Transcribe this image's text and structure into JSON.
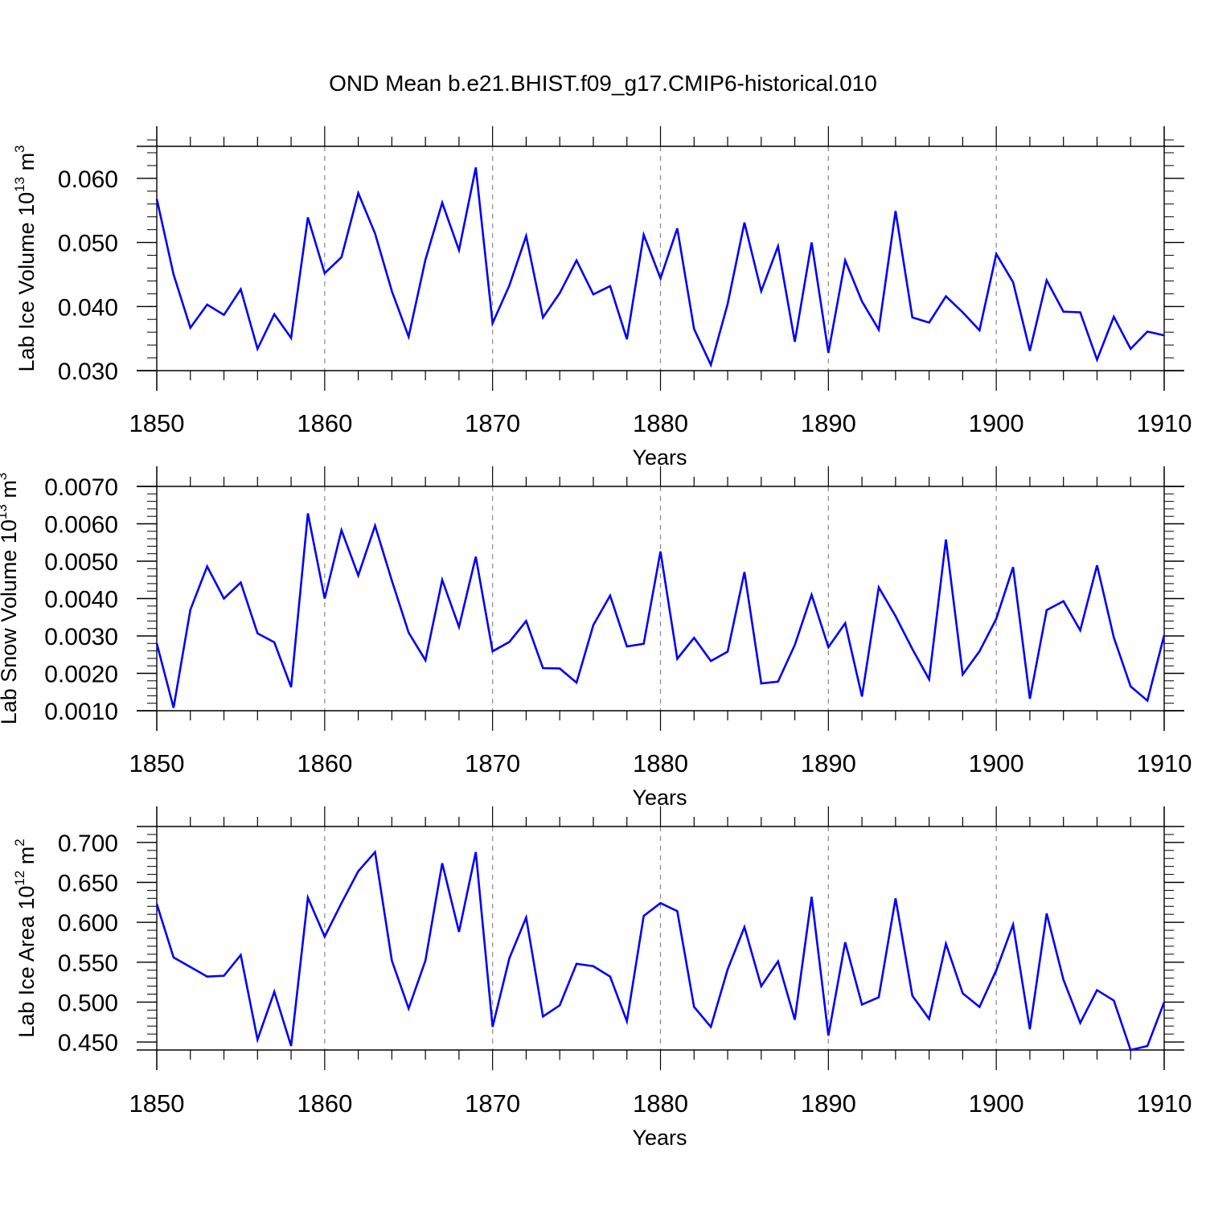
{
  "title": "OND Mean b.e21.BHIST.f09_g17.CMIP6-historical.010",
  "colors": {
    "line": "#0000ff",
    "axis": "#000000",
    "grid": "#888888"
  },
  "chart_data": [
    {
      "type": "line",
      "ylabel_main": "Lab Ice Volume 10",
      "ylabel_exp": "13",
      "ylabel_unit": " m",
      "ylabel_unit_exp": "3",
      "xlabel": "Years",
      "xlim": [
        1850,
        1910
      ],
      "ylim": [
        0.03,
        0.065
      ],
      "yticks": [
        0.03,
        0.04,
        0.05,
        0.06
      ],
      "yticklabels": [
        "0.030",
        "0.040",
        "0.050",
        "0.060"
      ],
      "yminor_step": 0.002,
      "xticks": [
        1850,
        1860,
        1870,
        1880,
        1890,
        1900,
        1910
      ],
      "xticklabels": [
        "1850",
        "1860",
        "1870",
        "1880",
        "1890",
        "1900",
        "1910"
      ],
      "grid": "vertical dashed",
      "series": [
        {
          "name": "Lab Ice Volume",
          "x": [
            1850,
            1851,
            1852,
            1853,
            1854,
            1855,
            1856,
            1857,
            1858,
            1859,
            1860,
            1861,
            1862,
            1863,
            1864,
            1865,
            1866,
            1867,
            1868,
            1869,
            1870,
            1871,
            1872,
            1873,
            1874,
            1875,
            1876,
            1877,
            1878,
            1879,
            1880,
            1881,
            1882,
            1883,
            1884,
            1885,
            1886,
            1887,
            1888,
            1889,
            1890,
            1891,
            1892,
            1893,
            1894,
            1895,
            1896,
            1897,
            1898,
            1899,
            1900,
            1901,
            1902,
            1903,
            1904,
            1905,
            1906,
            1907,
            1908,
            1909,
            1910
          ],
          "values": [
            0.0568,
            0.045,
            0.0367,
            0.0403,
            0.0387,
            0.0427,
            0.0334,
            0.0388,
            0.0351,
            0.0539,
            0.0452,
            0.0477,
            0.0577,
            0.0514,
            0.0424,
            0.0353,
            0.0473,
            0.0562,
            0.0488,
            0.0617,
            0.0374,
            0.0433,
            0.051,
            0.0383,
            0.0421,
            0.0472,
            0.0419,
            0.0432,
            0.0349,
            0.0512,
            0.0444,
            0.0522,
            0.0365,
            0.0309,
            0.0404,
            0.0531,
            0.0424,
            0.0494,
            0.0345,
            0.05,
            0.0328,
            0.0472,
            0.0408,
            0.0364,
            0.0549,
            0.0383,
            0.0375,
            0.0416,
            0.0391,
            0.0363,
            0.0482,
            0.0438,
            0.0331,
            0.0441,
            0.0392,
            0.0391,
            0.0317,
            0.0384,
            0.0334,
            0.0361,
            0.0355
          ]
        }
      ]
    },
    {
      "type": "line",
      "ylabel_main": "Lab Snow Volume 10",
      "ylabel_exp": "13",
      "ylabel_unit": " m",
      "ylabel_unit_exp": "3",
      "xlabel": "Years",
      "xlim": [
        1850,
        1910
      ],
      "ylim": [
        0.001,
        0.007
      ],
      "yticks": [
        0.001,
        0.002,
        0.003,
        0.004,
        0.005,
        0.006,
        0.007
      ],
      "yticklabels": [
        "0.0010",
        "0.0020",
        "0.0030",
        "0.0040",
        "0.0050",
        "0.0060",
        "0.0070"
      ],
      "yminor_step": 0.0002,
      "xticks": [
        1850,
        1860,
        1870,
        1880,
        1890,
        1900,
        1910
      ],
      "xticklabels": [
        "1850",
        "1860",
        "1870",
        "1880",
        "1890",
        "1900",
        "1910"
      ],
      "grid": "vertical dashed",
      "series": [
        {
          "name": "Lab Snow Volume",
          "x": [
            1850,
            1851,
            1852,
            1853,
            1854,
            1855,
            1856,
            1857,
            1858,
            1859,
            1860,
            1861,
            1862,
            1863,
            1864,
            1865,
            1866,
            1867,
            1868,
            1869,
            1870,
            1871,
            1872,
            1873,
            1874,
            1875,
            1876,
            1877,
            1878,
            1879,
            1880,
            1881,
            1882,
            1883,
            1884,
            1885,
            1886,
            1887,
            1888,
            1889,
            1890,
            1891,
            1892,
            1893,
            1894,
            1895,
            1896,
            1897,
            1898,
            1899,
            1900,
            1901,
            1902,
            1903,
            1904,
            1905,
            1906,
            1907,
            1908,
            1909,
            1910
          ],
          "values": [
            0.0028,
            0.00108,
            0.0037,
            0.00486,
            0.004,
            0.00443,
            0.00307,
            0.00283,
            0.00163,
            0.00628,
            0.004,
            0.00583,
            0.00462,
            0.00595,
            0.00448,
            0.00309,
            0.00235,
            0.0045,
            0.00324,
            0.00512,
            0.00259,
            0.00284,
            0.0034,
            0.00214,
            0.00213,
            0.00175,
            0.00329,
            0.00408,
            0.00272,
            0.00279,
            0.00526,
            0.00239,
            0.00295,
            0.00233,
            0.00258,
            0.00471,
            0.00173,
            0.00178,
            0.00276,
            0.0041,
            0.0027,
            0.00334,
            0.00138,
            0.0043,
            0.00353,
            0.00265,
            0.00184,
            0.00558,
            0.00197,
            0.00259,
            0.00346,
            0.00484,
            0.00132,
            0.00369,
            0.00393,
            0.00315,
            0.00489,
            0.00296,
            0.00165,
            0.00127,
            0.00302
          ]
        }
      ]
    },
    {
      "type": "line",
      "ylabel_main": "Lab Ice Area 10",
      "ylabel_exp": "12",
      "ylabel_unit": " m",
      "ylabel_unit_exp": "2",
      "xlabel": "Years",
      "xlim": [
        1850,
        1910
      ],
      "ylim": [
        0.44,
        0.72
      ],
      "yticks": [
        0.45,
        0.5,
        0.55,
        0.6,
        0.65,
        0.7
      ],
      "yticklabels": [
        "0.450",
        "0.500",
        "0.550",
        "0.600",
        "0.650",
        "0.700"
      ],
      "yminor_step": 0.01,
      "xticks": [
        1850,
        1860,
        1870,
        1880,
        1890,
        1900,
        1910
      ],
      "xticklabels": [
        "1850",
        "1860",
        "1870",
        "1880",
        "1890",
        "1900",
        "1910"
      ],
      "grid": "vertical dashed",
      "series": [
        {
          "name": "Lab Ice Area",
          "x": [
            1850,
            1851,
            1852,
            1853,
            1854,
            1855,
            1856,
            1857,
            1858,
            1859,
            1860,
            1861,
            1862,
            1863,
            1864,
            1865,
            1866,
            1867,
            1868,
            1869,
            1870,
            1871,
            1872,
            1873,
            1874,
            1875,
            1876,
            1877,
            1878,
            1879,
            1880,
            1881,
            1882,
            1883,
            1884,
            1885,
            1886,
            1887,
            1888,
            1889,
            1890,
            1891,
            1892,
            1893,
            1894,
            1895,
            1896,
            1897,
            1898,
            1899,
            1900,
            1901,
            1902,
            1903,
            1904,
            1905,
            1906,
            1907,
            1908,
            1909,
            1910
          ],
          "values": [
            0.623,
            0.556,
            0.544,
            0.532,
            0.533,
            0.559,
            0.453,
            0.513,
            0.445,
            0.631,
            0.582,
            0.624,
            0.664,
            0.688,
            0.552,
            0.492,
            0.552,
            0.674,
            0.588,
            0.688,
            0.469,
            0.555,
            0.606,
            0.482,
            0.496,
            0.548,
            0.545,
            0.532,
            0.476,
            0.608,
            0.624,
            0.614,
            0.494,
            0.469,
            0.541,
            0.594,
            0.52,
            0.551,
            0.478,
            0.632,
            0.458,
            0.575,
            0.497,
            0.506,
            0.63,
            0.508,
            0.479,
            0.573,
            0.511,
            0.494,
            0.54,
            0.597,
            0.466,
            0.611,
            0.528,
            0.474,
            0.515,
            0.502,
            0.44,
            0.445,
            0.5
          ]
        }
      ]
    }
  ]
}
